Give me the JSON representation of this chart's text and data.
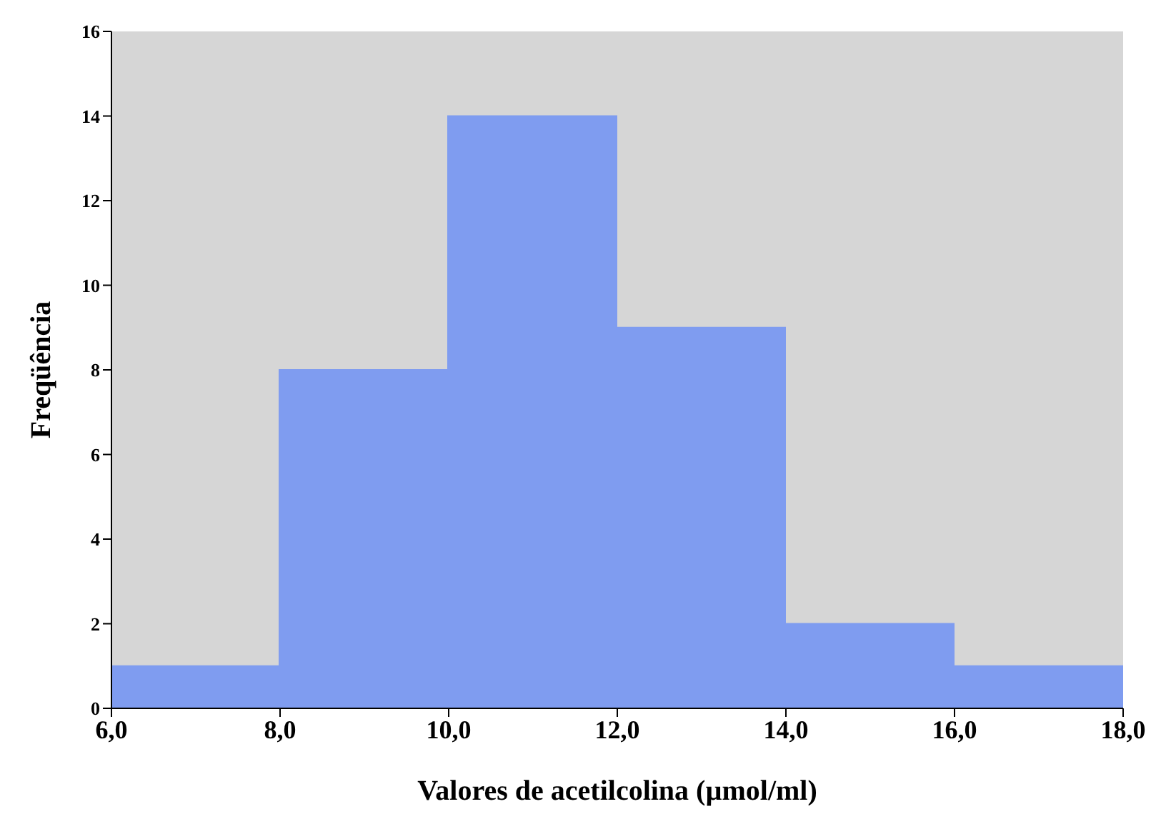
{
  "chart_data": {
    "type": "histogram",
    "xlabel": "Valores de acetilcolina (µmol/ml)",
    "ylabel": "Freqüência",
    "bins": [
      6,
      8,
      10,
      12,
      14,
      16,
      18
    ],
    "values": [
      1,
      8,
      14,
      9,
      2,
      1
    ],
    "color": "#7f9cf0",
    "xlim": [
      6,
      18
    ],
    "xticks": [
      {
        "value": 6,
        "label": "6,0"
      },
      {
        "value": 8,
        "label": "8,0"
      },
      {
        "value": 10,
        "label": "10,0"
      },
      {
        "value": 12,
        "label": "12,0"
      },
      {
        "value": 14,
        "label": "14,0"
      },
      {
        "value": 16,
        "label": "16,0"
      },
      {
        "value": 18,
        "label": "18,0"
      }
    ],
    "ylim": [
      0,
      16
    ],
    "yticks": [
      0,
      2,
      4,
      6,
      8,
      10,
      12,
      14,
      16
    ],
    "grid": false
  }
}
